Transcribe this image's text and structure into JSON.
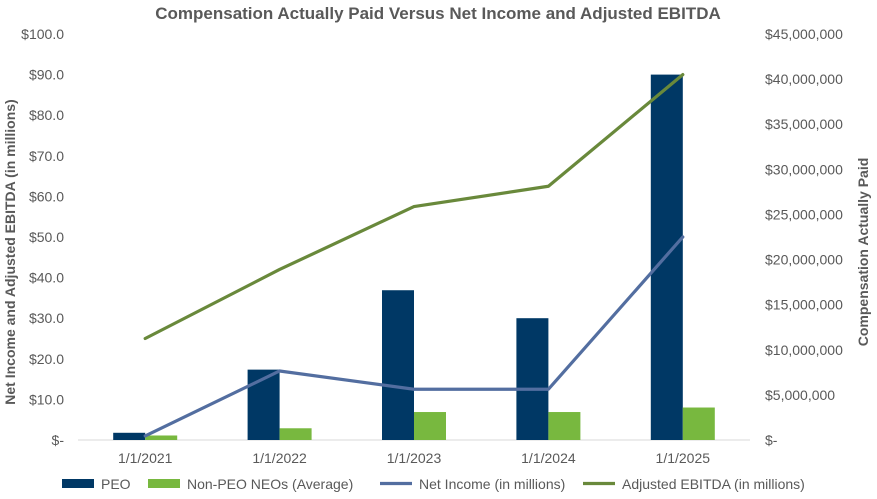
{
  "chart_data": {
    "type": "bar",
    "title": "Compensation Actually Paid Versus Net Income and Adjusted EBITDA",
    "categories": [
      "1/1/2021",
      "1/1/2022",
      "1/1/2023",
      "1/1/2024",
      "1/1/2025"
    ],
    "left_axis": {
      "label": "Net Income and Adjusted EBITDA (in millions)",
      "min": 0,
      "max": 100,
      "step": 10,
      "tick_labels": [
        "$-",
        "$10.0",
        "$20.0",
        "$30.0",
        "$40.0",
        "$50.0",
        "$60.0",
        "$70.0",
        "$80.0",
        "$90.0",
        "$100.0"
      ]
    },
    "right_axis": {
      "label": "Compensation Actually Paid",
      "min": 0,
      "max": 45000000,
      "step": 5000000,
      "tick_labels": [
        "$-",
        "$5,000,000",
        "$10,000,000",
        "$15,000,000",
        "$20,000,000",
        "$25,000,000",
        "$30,000,000",
        "$35,000,000",
        "$40,000,000",
        "$45,000,000"
      ]
    },
    "series": [
      {
        "name": "PEO",
        "type": "bar",
        "axis": "right",
        "color": "#003865",
        "values": [
          800000,
          7800000,
          16600000,
          13500000,
          40500000
        ]
      },
      {
        "name": "Non-PEO NEOs (Average)",
        "type": "bar",
        "axis": "right",
        "color": "#78b83f",
        "values": [
          500000,
          1300000,
          3100000,
          3100000,
          3600000
        ]
      },
      {
        "name": "Net Income (in millions)",
        "type": "line",
        "axis": "left",
        "color": "#536ea0",
        "values": [
          1.0,
          17.0,
          12.5,
          12.5,
          50.0
        ]
      },
      {
        "name": "Adjusted EBITDA (in millions)",
        "type": "line",
        "axis": "left",
        "color": "#69893b",
        "values": [
          25.0,
          42.0,
          57.5,
          62.5,
          90.0
        ]
      }
    ],
    "grid": false,
    "legend_position": "bottom"
  }
}
